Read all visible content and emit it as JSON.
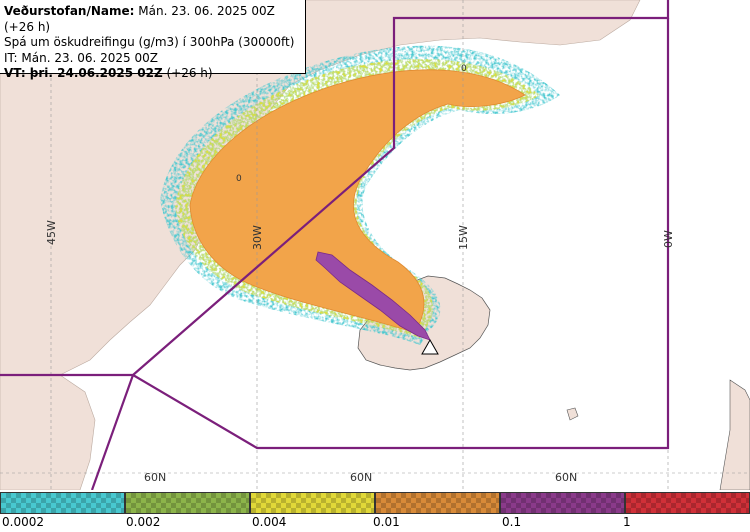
{
  "header": {
    "line1_label": "Veðurstofan/Name:",
    "line1_value": "Mán. 23. 06. 2025 00Z (+26 h)",
    "line2": "Spá um öskudreifingu (g/m3) í 300hPa (30000ft)",
    "line3": "IT: Mán. 23. 06. 2025 00Z",
    "line4_label": "VT: þri. 24.06.2025 02Z",
    "line4_value": "(+26 h)"
  },
  "map": {
    "graticule_labels": {
      "lon_45w": "45W",
      "lon_30w": "30W",
      "lon_15w": "15W",
      "lon_0w": "0W",
      "lat_60n_a": "60N",
      "lat_60n_b": "60N",
      "lat_60n_c": "60N"
    },
    "contour_labels": [
      "0",
      "0"
    ],
    "colors": {
      "land": "#f0e0d8",
      "sea": "#ffffff",
      "boundary": "#7b1f7b",
      "low": "#48c8d0",
      "mid_low": "#8cb44a",
      "mid": "#e8e030",
      "orange": "#f2a44a",
      "purple": "#9a4aa8",
      "red": "#d03038"
    }
  },
  "legend": {
    "ticks": [
      "0.0002",
      "0.002",
      "0.004",
      "0.01",
      "0.1",
      "1"
    ],
    "colors": [
      "#48c8d0",
      "#8cb44a",
      "#e0d838",
      "#d88a38",
      "#8a3a8a",
      "#d03038"
    ]
  }
}
